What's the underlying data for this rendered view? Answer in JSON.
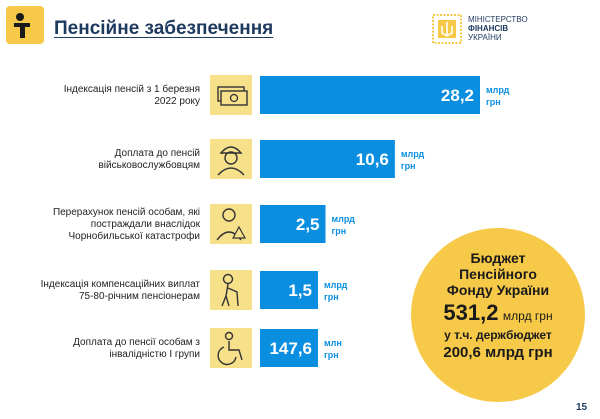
{
  "header": {
    "title": "Пенсійне забезпечення",
    "ministry": [
      "МІНІСТЕРСТВО",
      "ФІНАНСІВ",
      "УКРАЇНИ"
    ]
  },
  "chart_data": {
    "type": "bar",
    "orientation": "horizontal",
    "categories": [
      "Індексація пенсій з 1 березня 2022 року",
      "Доплата до пенсій військовослужбовцям",
      "Перерахунок пенсій особам, які постраждали внаслідок Чорнобильської катастрофи",
      "Індексація компенсаційних виплат 75-80-річним пенсіонерам",
      "Доплата до пенсії особам з інвалідністю I групи"
    ],
    "label_lines": [
      [
        "Індексація пенсій з 1 березня",
        "2022 року"
      ],
      [
        "Доплата до пенсій",
        "військовослужбовцям"
      ],
      [
        "Перерахунок пенсій особам, які",
        "постраждали внаслідок",
        "Чорнобильської катастрофи"
      ],
      [
        "Індексація компенсаційних виплат",
        "75-80-річним пенсіонерам"
      ],
      [
        "Доплата до пенсії особам з",
        "інвалідністю I групи"
      ]
    ],
    "values": [
      28.2,
      10.6,
      2.5,
      1.5,
      147.6
    ],
    "value_labels": [
      "28,2",
      "10,6",
      "2,5",
      "1,5",
      "147,6"
    ],
    "units": [
      [
        "млрд",
        "грн"
      ],
      [
        "млрд",
        "грн"
      ],
      [
        "млрд",
        "грн"
      ],
      [
        "млрд",
        "грн"
      ],
      [
        "млн",
        "грн"
      ]
    ],
    "values_in_mln_uah": [
      28200,
      10600,
      2500,
      1500,
      147.6
    ],
    "icons": [
      "money-icon",
      "soldier-icon",
      "radiation-worker-icon",
      "elderly-person-icon",
      "wheelchair-icon"
    ],
    "colors": {
      "bar": "#0a8ee0",
      "icon_bg": "#f7e08a",
      "accent": "#f7c948",
      "title": "#1f3a5f"
    }
  },
  "budget": {
    "title_lines": [
      "Бюджет",
      "Пенсійного",
      "Фонду України"
    ],
    "total_value": "531,2",
    "total_unit": "млрд грн",
    "sub_label": "у т.ч. держбюджет",
    "state_budget": "200,6 млрд грн"
  },
  "page_number": "15"
}
